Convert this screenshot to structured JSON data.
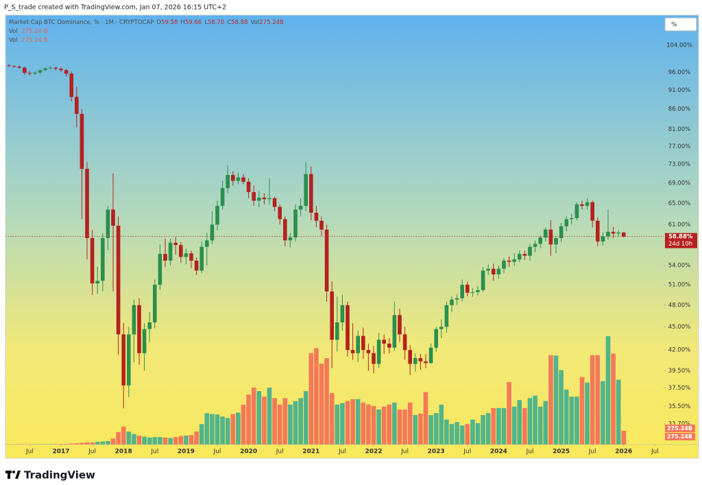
{
  "page": {
    "caption": "P_S_trade created with TradingView.com, Jan 07, 2026 16:15 UTC+2",
    "unit_button": "%",
    "logo": "TradingView"
  },
  "chart_data": {
    "type": "candlestick",
    "title": "Market Cap BTC Dominance, % · 1M · CRYPTOCAP",
    "legend_values": [
      {
        "key": "O",
        "value": "59.58"
      },
      {
        "key": "H",
        "value": "59.66"
      },
      {
        "key": "L",
        "value": "58.70"
      },
      {
        "key": "C",
        "value": "58.88"
      },
      {
        "key": "Vol",
        "value": "275.24B"
      }
    ],
    "indicators": [
      {
        "name": "Vol",
        "value": "275.24 B"
      },
      {
        "name": "Vol",
        "value": "275.24 B"
      }
    ],
    "x": [
      "2016-03",
      "2016-04",
      "2016-05",
      "2016-06",
      "2016-07",
      "2016-08",
      "2016-09",
      "2016-10",
      "2016-11",
      "2016-12",
      "2017-01",
      "2017-02",
      "2017-03",
      "2017-04",
      "2017-05",
      "2017-06",
      "2017-07",
      "2017-08",
      "2017-09",
      "2017-10",
      "2017-11",
      "2017-12",
      "2018-01",
      "2018-02",
      "2018-03",
      "2018-04",
      "2018-05",
      "2018-06",
      "2018-07",
      "2018-08",
      "2018-09",
      "2018-10",
      "2018-11",
      "2018-12",
      "2019-01",
      "2019-02",
      "2019-03",
      "2019-04",
      "2019-05",
      "2019-06",
      "2019-07",
      "2019-08",
      "2019-09",
      "2019-10",
      "2019-11",
      "2019-12",
      "2020-01",
      "2020-02",
      "2020-03",
      "2020-04",
      "2020-05",
      "2020-06",
      "2020-07",
      "2020-08",
      "2020-09",
      "2020-10",
      "2020-11",
      "2020-12",
      "2021-01",
      "2021-02",
      "2021-03",
      "2021-04",
      "2021-05",
      "2021-06",
      "2021-07",
      "2021-08",
      "2021-09",
      "2021-10",
      "2021-11",
      "2021-12",
      "2022-01",
      "2022-02",
      "2022-03",
      "2022-04",
      "2022-05",
      "2022-06",
      "2022-07",
      "2022-08",
      "2022-09",
      "2022-10",
      "2022-11",
      "2022-12",
      "2023-01",
      "2023-02",
      "2023-03",
      "2023-04",
      "2023-05",
      "2023-06",
      "2023-07",
      "2023-08",
      "2023-09",
      "2023-10",
      "2023-11",
      "2023-12",
      "2024-01",
      "2024-02",
      "2024-03",
      "2024-04",
      "2024-05",
      "2024-06",
      "2024-07",
      "2024-08",
      "2024-09",
      "2024-10",
      "2024-11",
      "2024-12",
      "2025-01",
      "2025-02",
      "2025-03",
      "2025-04",
      "2025-05",
      "2025-06",
      "2025-07",
      "2025-08",
      "2025-09",
      "2025-10",
      "2025-11",
      "2025-12",
      "2026-01"
    ],
    "open": [
      98.0,
      97.8,
      97.6,
      97.3,
      95.8,
      95.6,
      95.9,
      96.6,
      97.1,
      97.3,
      97.0,
      96.6,
      95.6,
      89.2,
      84.8,
      72.0,
      58.6,
      51.2,
      51.6,
      58.6,
      63.8,
      60.8,
      44.0,
      37.8,
      44.0,
      48.0,
      41.6,
      44.7,
      45.6,
      51.0,
      55.9,
      54.8,
      57.8,
      57.4,
      55.4,
      56.0,
      54.8,
      53.2,
      57.1,
      58.2,
      61.0,
      64.5,
      68.0,
      70.7,
      69.5,
      70.2,
      69.3,
      67.2,
      65.5,
      66.1,
      65.8,
      66.0,
      64.3,
      62.0,
      58.2,
      58.7,
      63.8,
      64.5,
      70.9,
      63.2,
      61.7,
      60.1,
      50.0,
      43.3,
      45.6,
      48.0,
      42.0,
      41.6,
      43.8,
      42.0,
      41.6,
      40.3,
      43.3,
      42.8,
      42.3,
      46.6,
      44.0,
      42.0,
      40.3,
      41.0,
      40.6,
      40.4,
      42.3,
      44.7,
      45.0,
      48.0,
      48.8,
      49.0,
      51.0,
      49.8,
      49.9,
      50.2,
      53.2,
      53.5,
      52.6,
      53.5,
      54.8,
      54.6,
      55.0,
      55.9,
      55.6,
      57.1,
      57.6,
      58.7,
      60.1,
      57.5,
      58.6,
      60.7,
      62.0,
      62.2,
      64.8,
      64.5,
      65.2,
      61.7,
      58.0,
      58.9,
      59.7,
      59.4,
      59.58
    ],
    "high": [
      98.3,
      98.0,
      97.9,
      97.6,
      96.3,
      96.3,
      96.9,
      97.5,
      97.8,
      97.6,
      97.4,
      97.0,
      96.2,
      92.0,
      86.0,
      73.5,
      60.0,
      53.8,
      59.5,
      64.5,
      71.0,
      62.5,
      45.5,
      45.0,
      48.8,
      49.0,
      45.5,
      47.0,
      51.8,
      57.5,
      58.5,
      58.5,
      58.8,
      57.9,
      56.8,
      56.4,
      55.3,
      58.0,
      59.5,
      63.5,
      65.5,
      69.5,
      72.8,
      71.5,
      71.2,
      70.9,
      70.0,
      68.5,
      67.5,
      67.0,
      70.0,
      66.3,
      64.8,
      62.5,
      59.5,
      64.8,
      66.0,
      73.5,
      72.5,
      64.5,
      62.5,
      61.0,
      51.5,
      49.2,
      49.5,
      48.5,
      45.5,
      44.5,
      44.9,
      42.8,
      42.5,
      44.2,
      44.0,
      43.5,
      48.5,
      47.5,
      45.0,
      42.6,
      41.6,
      41.5,
      41.5,
      42.8,
      45.0,
      46.0,
      48.5,
      49.3,
      49.6,
      51.8,
      51.5,
      50.5,
      50.8,
      53.8,
      54.2,
      54.3,
      54.0,
      55.2,
      55.5,
      56.0,
      56.5,
      56.4,
      57.6,
      58.2,
      59.0,
      60.5,
      61.8,
      59.0,
      61.3,
      62.5,
      63.0,
      65.2,
      65.5,
      66.0,
      65.5,
      62.3,
      59.6,
      63.8,
      60.6,
      60.0,
      59.66
    ],
    "low": [
      97.5,
      97.3,
      97.0,
      95.2,
      95.0,
      95.2,
      95.5,
      96.3,
      96.8,
      96.5,
      96.0,
      94.8,
      88.0,
      81.5,
      62.0,
      55.0,
      49.5,
      49.6,
      50.0,
      56.5,
      50.0,
      41.4,
      35.3,
      36.5,
      40.5,
      40.2,
      39.5,
      43.0,
      44.8,
      50.2,
      53.8,
      54.0,
      55.8,
      54.5,
      54.2,
      53.6,
      52.5,
      52.8,
      54.0,
      57.5,
      60.0,
      63.8,
      67.0,
      68.5,
      68.8,
      68.8,
      66.0,
      64.5,
      64.2,
      64.8,
      64.8,
      63.5,
      61.0,
      57.2,
      57.0,
      58.0,
      62.5,
      63.5,
      61.8,
      60.5,
      59.0,
      48.5,
      39.8,
      41.8,
      44.5,
      41.2,
      40.8,
      40.5,
      40.9,
      39.5,
      39.2,
      39.8,
      41.5,
      41.6,
      41.9,
      43.0,
      40.8,
      39.0,
      39.4,
      39.6,
      39.8,
      40.3,
      41.8,
      43.5,
      44.2,
      47.0,
      48.0,
      48.5,
      49.3,
      49.2,
      49.4,
      49.9,
      52.5,
      51.6,
      51.9,
      52.8,
      53.8,
      53.9,
      54.6,
      54.9,
      54.8,
      56.2,
      56.9,
      58.0,
      55.6,
      56.0,
      57.9,
      59.8,
      61.0,
      61.8,
      63.8,
      63.8,
      60.5,
      57.2,
      57.3,
      58.3,
      58.6,
      58.9,
      58.7
    ],
    "close": [
      97.8,
      97.6,
      97.3,
      95.8,
      95.6,
      95.9,
      96.6,
      97.1,
      97.3,
      97.0,
      96.6,
      95.6,
      89.2,
      84.8,
      72.0,
      58.6,
      51.2,
      51.6,
      58.6,
      63.8,
      60.8,
      44.0,
      37.8,
      44.0,
      48.0,
      41.6,
      44.7,
      45.6,
      51.0,
      55.9,
      54.8,
      57.8,
      57.4,
      55.4,
      56.0,
      54.8,
      53.2,
      57.1,
      58.2,
      61.0,
      64.5,
      68.0,
      70.7,
      69.5,
      70.2,
      69.3,
      67.2,
      65.5,
      66.1,
      65.8,
      66.0,
      64.3,
      62.0,
      58.2,
      58.7,
      63.8,
      64.5,
      70.9,
      63.2,
      61.7,
      60.1,
      50.0,
      43.3,
      45.6,
      48.0,
      42.0,
      41.6,
      43.8,
      42.0,
      41.6,
      40.3,
      43.3,
      42.8,
      42.3,
      46.6,
      44.0,
      42.0,
      40.3,
      41.0,
      40.6,
      40.4,
      42.3,
      44.7,
      45.0,
      48.0,
      48.8,
      49.0,
      51.0,
      49.8,
      49.9,
      50.2,
      53.2,
      53.5,
      52.6,
      53.5,
      54.8,
      54.6,
      55.0,
      55.9,
      55.6,
      57.1,
      57.6,
      58.7,
      60.1,
      57.5,
      58.6,
      60.7,
      62.0,
      62.2,
      64.8,
      64.5,
      65.2,
      61.7,
      58.0,
      58.9,
      59.7,
      59.4,
      59.58,
      58.88
    ],
    "volume": {
      "values": [
        5,
        5,
        6,
        6,
        5,
        6,
        6,
        7,
        8,
        9,
        10,
        12,
        20,
        25,
        35,
        45,
        40,
        55,
        60,
        70,
        120,
        250,
        360,
        260,
        210,
        180,
        160,
        140,
        150,
        150,
        140,
        130,
        150,
        170,
        180,
        190,
        260,
        410,
        630,
        610,
        600,
        560,
        530,
        610,
        640,
        800,
        1000,
        1140,
        1070,
        960,
        1140,
        930,
        800,
        930,
        800,
        870,
        930,
        1070,
        1830,
        1930,
        1620,
        1730,
        1030,
        800,
        830,
        870,
        910,
        910,
        840,
        800,
        770,
        700,
        760,
        800,
        840,
        700,
        700,
        840,
        590,
        620,
        1050,
        590,
        630,
        800,
        500,
        410,
        450,
        380,
        410,
        500,
        430,
        590,
        630,
        730,
        730,
        730,
        1250,
        760,
        890,
        730,
        930,
        980,
        760,
        870,
        1790,
        1780,
        1490,
        1100,
        960,
        960,
        1350,
        1240,
        1790,
        1790,
        1270,
        2170,
        1820,
        1300,
        275.24
      ],
      "up_color": "#52b48a",
      "down_color": "#f4795a"
    },
    "up_color": "#2b8f4e",
    "down_color": "#b5211f",
    "log_scale": true,
    "grid": false,
    "ylim": [
      31.7,
      113.8
    ],
    "yticks": [
      {
        "value": 104,
        "label": "104.00%"
      },
      {
        "value": 96,
        "label": "96.00%"
      },
      {
        "value": 91,
        "label": "91.00%"
      },
      {
        "value": 86,
        "label": "86.00%"
      },
      {
        "value": 81,
        "label": "81.00%"
      },
      {
        "value": 77,
        "label": "77.00%"
      },
      {
        "value": 73,
        "label": "73.00%"
      },
      {
        "value": 69,
        "label": "69.00%"
      },
      {
        "value": 65,
        "label": "65.00%"
      },
      {
        "value": 61,
        "label": "61.00%"
      },
      {
        "value": 54,
        "label": "54.00%"
      },
      {
        "value": 51,
        "label": "51.00%"
      },
      {
        "value": 48,
        "label": "48.00%"
      },
      {
        "value": 45,
        "label": "45.00%"
      },
      {
        "value": 42,
        "label": "42.00%"
      },
      {
        "value": 39.5,
        "label": "39.50%"
      },
      {
        "value": 37.5,
        "label": "37.50%"
      },
      {
        "value": 35.5,
        "label": "35.50%"
      },
      {
        "value": 33.7,
        "label": "33.70%"
      }
    ],
    "y2lim": [
      0,
      8600
    ],
    "xticks": [
      {
        "value": "2016-07",
        "label": "Jul"
      },
      {
        "value": "2017-01",
        "label": "2017"
      },
      {
        "value": "2017-07",
        "label": "Jul"
      },
      {
        "value": "2018-01",
        "label": "2018"
      },
      {
        "value": "2018-07",
        "label": "Jul"
      },
      {
        "value": "2019-01",
        "label": "2019"
      },
      {
        "value": "2019-07",
        "label": "Jul"
      },
      {
        "value": "2020-01",
        "label": "2020"
      },
      {
        "value": "2020-07",
        "label": "Jul"
      },
      {
        "value": "2021-01",
        "label": "2021"
      },
      {
        "value": "2021-07",
        "label": "Jul"
      },
      {
        "value": "2022-01",
        "label": "2022"
      },
      {
        "value": "2022-07",
        "label": "Jul"
      },
      {
        "value": "2023-01",
        "label": "2023"
      },
      {
        "value": "2023-07",
        "label": "Jul"
      },
      {
        "value": "2024-01",
        "label": "2024"
      },
      {
        "value": "2024-07",
        "label": "Jul"
      },
      {
        "value": "2025-01",
        "label": "2025"
      },
      {
        "value": "2025-07",
        "label": "Jul"
      },
      {
        "value": "2026-01",
        "label": "2026"
      },
      {
        "value": "2026-07",
        "label": "Jul"
      }
    ],
    "price_label": "58.88%",
    "countdown": "24d 10h",
    "volume_badges": [
      "275.24B",
      "275.24B"
    ]
  }
}
